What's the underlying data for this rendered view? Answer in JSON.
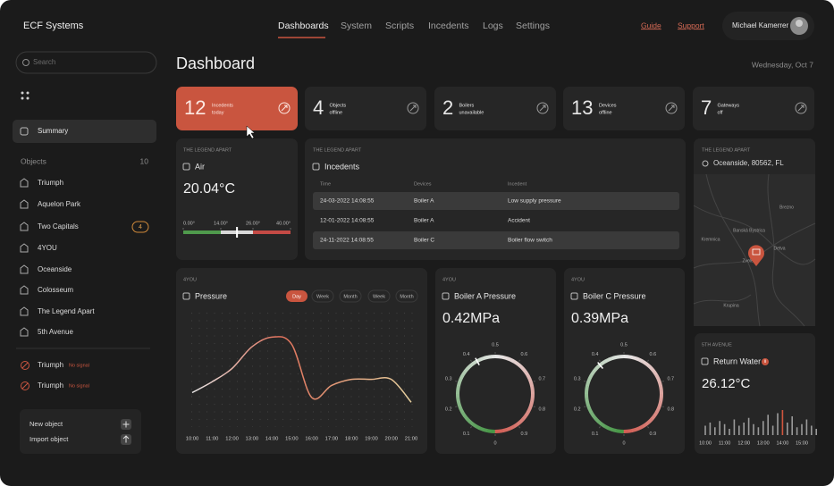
{
  "header": {
    "brand": "ECF Systems",
    "nav": [
      "Dashboards",
      "System",
      "Scripts",
      "Incedents",
      "Logs",
      "Settings"
    ],
    "links": [
      "Guide",
      "Support"
    ],
    "user": "Michael Kamerrer"
  },
  "sidebar": {
    "search": "Search",
    "summary": "Summary",
    "objects_label": "Objects",
    "objects_count": 10,
    "objects": [
      {
        "name": "Triumph"
      },
      {
        "name": "Aquelon Park"
      },
      {
        "name": "Two Capitals",
        "badge": 4
      },
      {
        "name": "4YOU"
      },
      {
        "name": "Oceanside"
      },
      {
        "name": "Colosseum"
      },
      {
        "name": "The Legend Apart"
      },
      {
        "name": "5th Avenue"
      }
    ],
    "alerts": [
      {
        "name": "Triumph",
        "status": "No signal"
      },
      {
        "name": "Triumph",
        "status": "No signal"
      }
    ],
    "actions": [
      "New object",
      "Import object"
    ]
  },
  "main": {
    "title": "Dashboard",
    "date": "Wednesday, Oct 7",
    "stats": [
      {
        "value": 12,
        "label": [
          "Incedents",
          "today"
        ]
      },
      {
        "value": 4,
        "label": [
          "Objects",
          "offline"
        ]
      },
      {
        "value": 2,
        "label": [
          "Boilers",
          "unavailable"
        ]
      },
      {
        "value": 13,
        "label": [
          "Devices",
          "offline"
        ]
      },
      {
        "value": 7,
        "label": [
          "Gateways",
          "off"
        ]
      }
    ],
    "air": {
      "subtitle": "THE LEGEND APART",
      "title": "Air",
      "reading": "20.04°C",
      "value": 20.04,
      "xlim": [
        0,
        40
      ],
      "xticks": [
        {
          "value": 0,
          "label": "0.00°"
        },
        {
          "value": 14,
          "label": "14.00°"
        },
        {
          "value": 26,
          "label": "26.00°"
        },
        {
          "value": 40,
          "label": "40.00°"
        }
      ]
    },
    "incidents": {
      "subtitle": "THE LEGEND APART",
      "title": "Incedents",
      "columns": [
        "Time",
        "Devices",
        "Incedent"
      ],
      "rows": [
        [
          "24-03-2022 14:08:55",
          "Boiler A",
          "Low supply pressure"
        ],
        [
          "12-01-2022 14:08:55",
          "Boiler A",
          "Accident"
        ],
        [
          "24-11-2022 14:08:55",
          "Boiler C",
          "Boiler flow switch"
        ]
      ]
    },
    "map": {
      "subtitle": "THE LEGEND APART",
      "location": "Oceanside, 80562, FL",
      "places": [
        "Kremnica",
        "Banská Bystrica",
        "Zvolen",
        "Krupina",
        "Detva",
        "Brezno"
      ]
    }
  },
  "chart_data": [
    {
      "type": "line",
      "subtitle": "4YOU",
      "title": "Pressure",
      "toggles": [
        "Day",
        "Week",
        "Month",
        "Week",
        "Month"
      ],
      "categories": [
        "10:00",
        "11:00",
        "12:00",
        "13:00",
        "14:00",
        "15:00",
        "16:00",
        "17:00",
        "18:00",
        "19:00",
        "20:00",
        "21:00"
      ],
      "series": [
        {
          "color": "#e0705a",
          "values": [
            30,
            39,
            50,
            68,
            76,
            70,
            26,
            36,
            41,
            41,
            41,
            22
          ]
        }
      ],
      "ylim": [
        0,
        100
      ]
    },
    {
      "type": "gauge",
      "subtitle": "4YOU",
      "title": "Boiler A Pressure",
      "values": [
        0.42
      ],
      "value_labels": [
        "0.42MPa"
      ],
      "lim": [
        0,
        1
      ],
      "ticks": [
        0,
        0.1,
        0.2,
        0.3,
        0.4,
        0.5,
        0.6,
        0.7,
        0.8,
        0.9
      ]
    },
    {
      "type": "gauge",
      "subtitle": "4YOU",
      "title": "Boiler C Pressure",
      "values": [
        0.39
      ],
      "value_labels": [
        "0.39MPa"
      ],
      "lim": [
        0,
        1
      ],
      "ticks": [
        0,
        0.1,
        0.2,
        0.3,
        0.4,
        0.5,
        0.6,
        0.7,
        0.8,
        0.9
      ]
    },
    {
      "type": "bar",
      "subtitle": "5TH AVENUE",
      "title": "Return Water",
      "reading": "26.12°C",
      "color": "#9a9a9a",
      "highlight": 16,
      "highlight_color": "#d0553e",
      "categories": [
        "10:00",
        null,
        null,
        null,
        "11:00",
        null,
        null,
        null,
        "12:00",
        null,
        null,
        null,
        "13:00",
        null,
        null,
        null,
        "14:00",
        null,
        null,
        null,
        "15:00",
        null,
        null,
        null
      ],
      "values": [
        12,
        16,
        10,
        18,
        14,
        8,
        20,
        12,
        16,
        22,
        14,
        10,
        18,
        26,
        12,
        28,
        32,
        16,
        24,
        10,
        14,
        20,
        12,
        8
      ],
      "ylim": [
        0,
        40
      ]
    }
  ]
}
